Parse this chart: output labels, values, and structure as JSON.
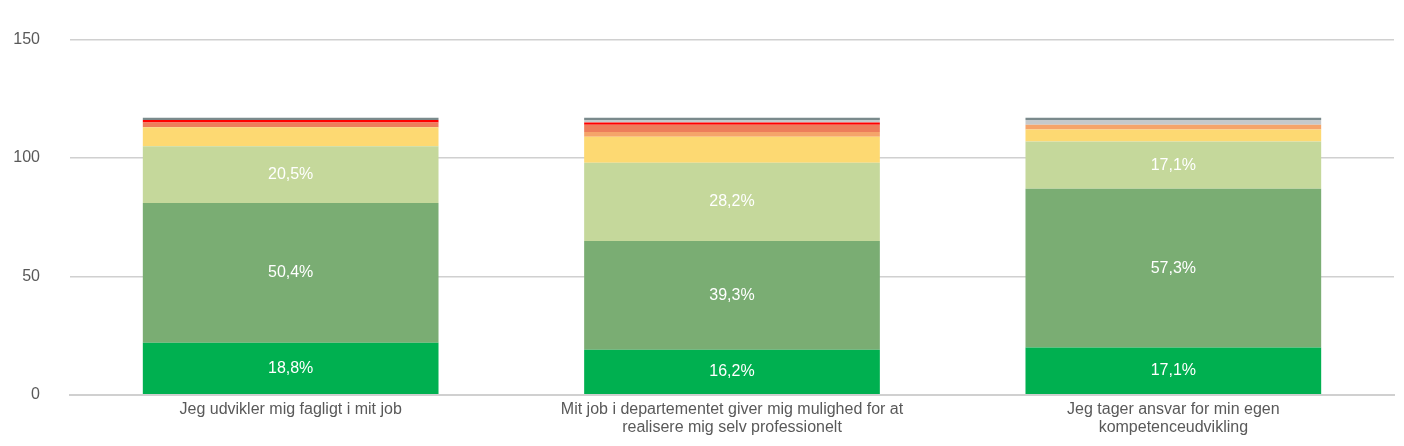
{
  "chart_data": {
    "type": "bar",
    "stacked": true,
    "categories": [
      "Jeg udvikler mig fagligt i mit job",
      "Mit job i departementet giver mig mulighed for at realisere mig selv professionelt",
      "Jeg tager ansvar for min egen kompetenceudvikling"
    ],
    "ylim": [
      0,
      150
    ],
    "yticks": [
      0,
      50,
      100,
      150
    ],
    "grid": "y",
    "legend": false,
    "series": [
      {
        "color": "#00b050",
        "values": [
          22,
          19,
          20
        ]
      },
      {
        "color": "#7aad73",
        "values": [
          59,
          46,
          67
        ]
      },
      {
        "color": "#c5d89b",
        "values": [
          24,
          33,
          20
        ]
      },
      {
        "color": "#fdd972",
        "values": [
          8,
          11,
          5
        ]
      },
      {
        "color": "#f5a46a",
        "values": [
          0,
          2,
          2
        ]
      },
      {
        "color": "#ed7d5b",
        "values": [
          2,
          3,
          0
        ]
      },
      {
        "color": "#ff0000",
        "values": [
          1,
          1,
          0
        ]
      },
      {
        "color": "#c5c9cc",
        "values": [
          0,
          1,
          2
        ]
      },
      {
        "color": "#7a8a8c",
        "values": [
          1,
          1,
          1
        ]
      }
    ],
    "annotations": [
      "18,8%",
      "50,4%",
      "20,5%",
      "16,2%",
      "39,3%",
      "28,2%",
      "17,1%",
      "57,3%",
      "17,1%"
    ]
  }
}
